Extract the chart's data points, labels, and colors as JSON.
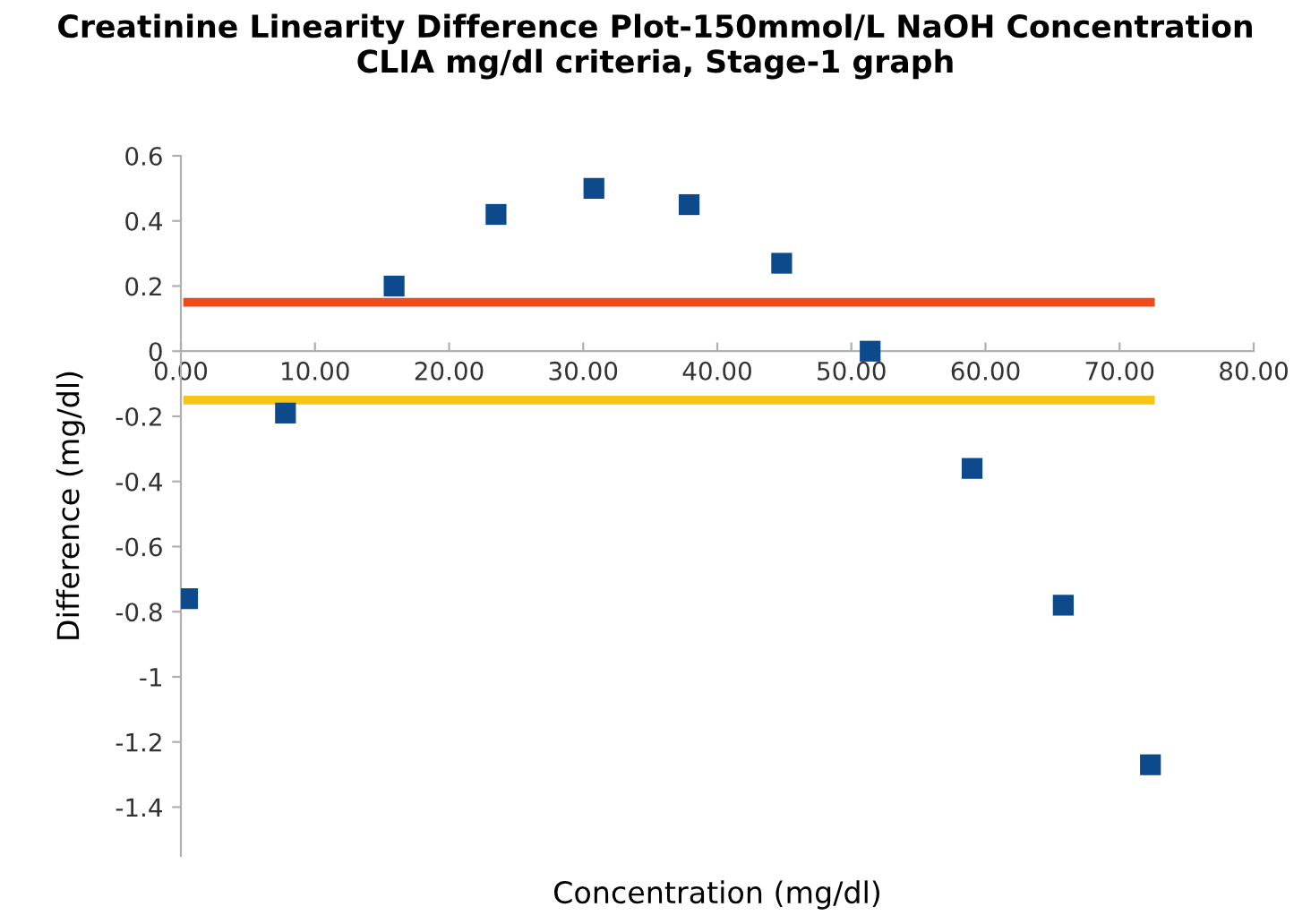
{
  "chart_data": {
    "type": "scatter",
    "title": "Creatinine Linearity Difference Plot-150mmol/L NaOH Concentration\nCLIA mg/dl criteria, Stage-1 graph",
    "xlabel": "Concentration (mg/dl)",
    "ylabel": "Difference (mg/dl)",
    "x": [
      0.5,
      7.8,
      15.9,
      23.5,
      30.8,
      37.9,
      44.8,
      51.4,
      59.0,
      65.8,
      72.3
    ],
    "series": [
      {
        "color": "#0d4a8c",
        "marker": "square",
        "values": [
          -0.76,
          -0.19,
          0.2,
          0.42,
          0.5,
          0.45,
          0.27,
          0.0,
          -0.36,
          -0.78,
          -1.27
        ]
      },
      {
        "type": "line",
        "color": "#f04a1a",
        "marker": "none",
        "values": [
          0.15,
          0.15,
          0.15,
          0.15,
          0.15,
          0.15,
          0.15,
          0.15,
          0.15,
          0.15,
          0.15
        ]
      },
      {
        "type": "line",
        "color": "#f5c518",
        "marker": "none",
        "values": [
          -0.15,
          -0.15,
          -0.15,
          -0.15,
          -0.15,
          -0.15,
          -0.15,
          -0.15,
          -0.15,
          -0.15,
          -0.15
        ]
      }
    ],
    "xlim": [
      0,
      80
    ],
    "xticks": [
      {
        "value": 0,
        "label": "0.00"
      },
      {
        "value": 10,
        "label": "10.00"
      },
      {
        "value": 20,
        "label": "20.00"
      },
      {
        "value": 30,
        "label": "30.00"
      },
      {
        "value": 40,
        "label": "40.00"
      },
      {
        "value": 50,
        "label": "50.00"
      },
      {
        "value": 60,
        "label": "60.00"
      },
      {
        "value": 70,
        "label": "70.00"
      },
      {
        "value": 80,
        "label": "80.00"
      }
    ],
    "ylim": [
      -1.55,
      0.6
    ],
    "yticks": [
      {
        "value": 0.6,
        "label": "0.6"
      },
      {
        "value": 0.4,
        "label": "0.4"
      },
      {
        "value": 0.2,
        "label": "0.2"
      },
      {
        "value": 0,
        "label": "0"
      },
      {
        "value": -0.2,
        "label": "-0.2"
      },
      {
        "value": -0.4,
        "label": "-0.4"
      },
      {
        "value": -0.6,
        "label": "-0.6"
      },
      {
        "value": -0.8,
        "label": "-0.8"
      },
      {
        "value": -1,
        "label": "-1"
      },
      {
        "value": -1.2,
        "label": "-1.2"
      },
      {
        "value": -1.4,
        "label": "-1.4"
      }
    ],
    "grid": false,
    "legend": false
  }
}
